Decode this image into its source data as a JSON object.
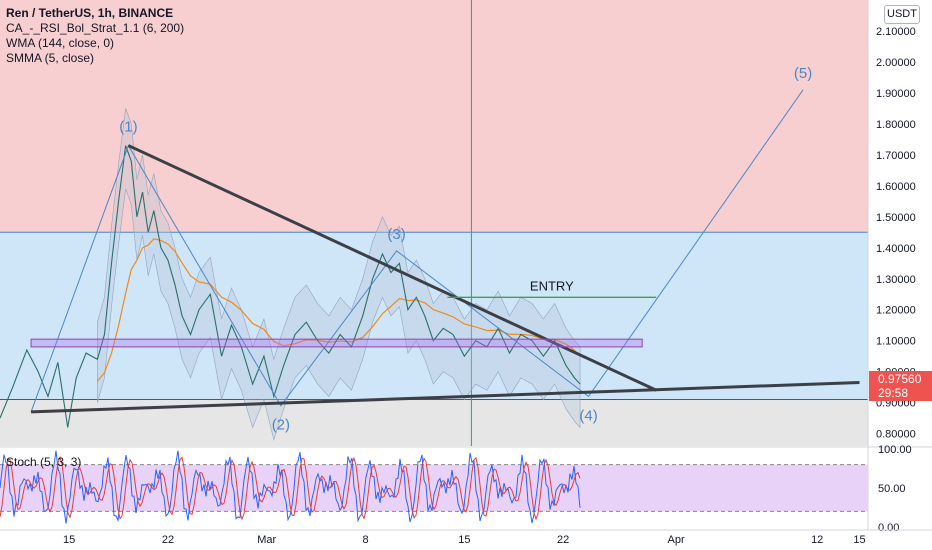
{
  "legend": {
    "symbol": "Ren / TetherUS, 1h, BINANCE",
    "ind1": "CA_-_RSI_Bol_Strat_1.1 (6, 200)",
    "ind2": "WMA (144, close, 0)",
    "ind3": "SMMA (5, close)"
  },
  "currency": "USDT",
  "last_price": "0.97560",
  "countdown": "29:58",
  "stoch_label": "Stoch (5, 3, 3)",
  "colors": {
    "red_zone": "#f7cfd0",
    "blue_zone": "#cfe5f8",
    "grey_zone": "#e6e6e6",
    "purple_zone": "#e9d2f7",
    "stoch_k": "#2962ff",
    "stoch_d": "#e23c3c",
    "wave": "#4c87c7",
    "trend": "#3c3f46",
    "entry": "#43a047",
    "rectangle": "#a874f5",
    "wma": "#f08a1c",
    "price_badge": "#ef5350"
  },
  "chart_data": {
    "type": "line",
    "yaxis": {
      "min": 0.76,
      "max": 2.2,
      "ticks": [
        "0.80000",
        "0.90000",
        "1.00000",
        "1.10000",
        "1.20000",
        "1.30000",
        "1.40000",
        "1.50000",
        "1.60000",
        "1.70000",
        "1.80000",
        "1.90000",
        "2.00000",
        "2.10000"
      ],
      "tick_values": [
        0.8,
        0.9,
        1.0,
        1.1,
        1.2,
        1.3,
        1.4,
        1.5,
        1.6,
        1.7,
        1.8,
        1.9,
        2.0,
        2.1
      ]
    },
    "xaxis": {
      "labels": [
        "15",
        "22",
        "Mar",
        "8",
        "15",
        "22",
        "Apr",
        "12",
        "15"
      ],
      "label_days": [
        15,
        22,
        29,
        36,
        43,
        50,
        58,
        68,
        71
      ]
    },
    "x_domain_days": [
      10.1,
      71.6
    ],
    "zones": [
      {
        "name": "resistance-zone",
        "from": 1.45,
        "to": 2.2
      },
      {
        "name": "support-zone",
        "from": 0.91,
        "to": 1.45
      },
      {
        "name": "below-zone",
        "from": 0.76,
        "to": 0.91
      }
    ],
    "price_series": {
      "days": [
        10.1,
        11,
        12,
        12.8,
        13.5,
        14.2,
        14.9,
        15.5,
        16.2,
        17,
        17.5,
        18,
        18.5,
        19,
        19.4,
        19.8,
        20.2,
        20.6,
        21,
        21.5,
        22,
        22.5,
        23,
        23.6,
        24.2,
        25,
        25.8,
        26.5,
        27.2,
        28,
        28.8,
        29.5,
        30.2,
        31,
        31.8,
        32.6,
        33.4,
        34.2,
        35,
        35.8,
        36.5,
        37.2,
        37.8,
        38.4,
        39,
        39.6,
        40.2,
        40.8,
        41.5,
        42.2,
        43,
        43.8,
        44.6,
        45.4,
        46.2,
        47,
        47.8,
        48.6,
        49.4,
        50.2,
        50.8,
        51.2
      ],
      "values": [
        0.85,
        0.95,
        1.07,
        1.0,
        0.92,
        1.03,
        0.82,
        0.98,
        1.06,
        1.04,
        1.12,
        1.35,
        1.55,
        1.73,
        1.68,
        1.5,
        1.58,
        1.45,
        1.52,
        1.4,
        1.36,
        1.28,
        1.18,
        1.12,
        1.2,
        1.25,
        1.05,
        1.15,
        1.08,
        0.96,
        1.05,
        0.92,
        1.02,
        1.12,
        1.16,
        1.1,
        1.06,
        1.12,
        1.08,
        1.18,
        1.3,
        1.38,
        1.32,
        1.35,
        1.2,
        1.24,
        1.18,
        1.1,
        1.14,
        1.12,
        1.05,
        1.1,
        1.08,
        1.14,
        1.06,
        1.12,
        1.1,
        1.05,
        1.1,
        1.02,
        0.98,
        0.96
      ]
    },
    "annotations": {
      "waves": [
        {
          "label": "(1)",
          "day": 19.2,
          "value": 1.73
        },
        {
          "label": "(2)",
          "day": 30.0,
          "value": 0.89
        },
        {
          "label": "(3)",
          "day": 38.2,
          "value": 1.39
        },
        {
          "label": "(4)",
          "day": 51.8,
          "value": 0.92
        },
        {
          "label": "(5)",
          "day": 67.0,
          "value": 1.91
        }
      ],
      "entry_label": "ENTRY",
      "entry_level": 1.24,
      "entry_days": [
        41.8,
        56.6
      ],
      "rectangle": {
        "days": [
          12.3,
          55.6
        ],
        "low": 1.08,
        "high": 1.105
      },
      "upper_trend": {
        "days": [
          19.2,
          56.6
        ],
        "values": [
          1.73,
          0.94
        ]
      },
      "lower_trend": {
        "days": [
          12.3,
          71.0
        ],
        "values": [
          0.87,
          0.965
        ]
      },
      "resistance_level": 1.45,
      "support_level": 0.91,
      "vertical_line_day": 43.5
    },
    "stoch": {
      "min": 0,
      "max": 100,
      "ticks": [
        "100.00",
        "50.00",
        "0.00"
      ],
      "tick_values": [
        100,
        50,
        0
      ],
      "bands": [
        80,
        20
      ]
    }
  }
}
